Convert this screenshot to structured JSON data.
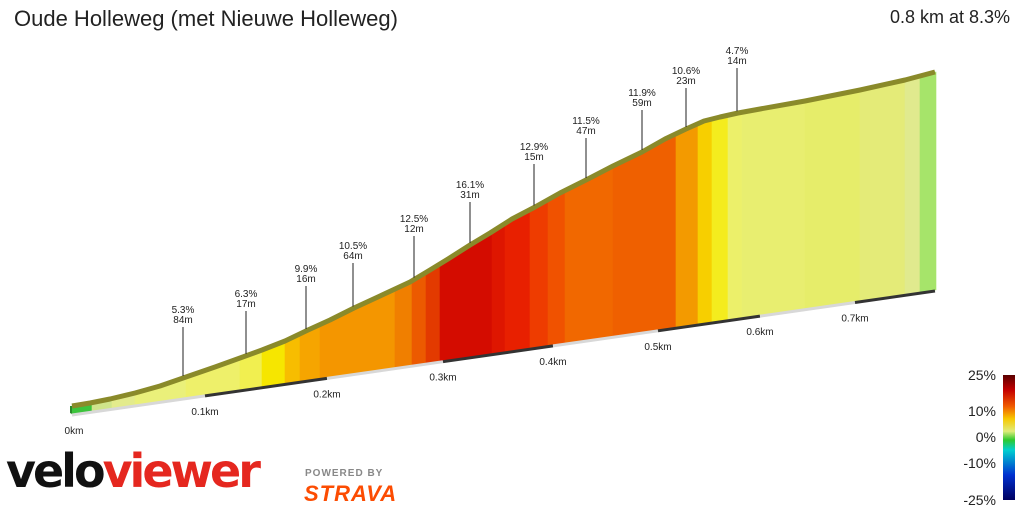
{
  "header": {
    "title": "Oude Holleweg (met Nieuwe Holleweg)",
    "stats": "0.8 km at 8.3%"
  },
  "chart_data": {
    "type": "area",
    "title": "Oude Holleweg (met Nieuwe Holleweg)",
    "x_unit": "km",
    "distance_ticks": [
      "0km",
      "0.1km",
      "0.2km",
      "0.3km",
      "0.4km",
      "0.5km",
      "0.6km",
      "0.7km"
    ],
    "segments": [
      {
        "gradient": "5.3%",
        "length": "84m"
      },
      {
        "gradient": "6.3%",
        "length": "17m"
      },
      {
        "gradient": "9.9%",
        "length": "16m"
      },
      {
        "gradient": "10.5%",
        "length": "64m"
      },
      {
        "gradient": "12.5%",
        "length": "12m"
      },
      {
        "gradient": "16.1%",
        "length": "31m"
      },
      {
        "gradient": "12.9%",
        "length": "15m"
      },
      {
        "gradient": "11.5%",
        "length": "47m"
      },
      {
        "gradient": "11.9%",
        "length": "59m"
      },
      {
        "gradient": "10.6%",
        "length": "23m"
      },
      {
        "gradient": "4.7%",
        "length": "14m"
      }
    ],
    "color_scale": {
      "labels": [
        "25%",
        "10%",
        "0%",
        "-10%",
        "-25%"
      ]
    }
  },
  "branding": {
    "logo_left": "velo",
    "logo_right": "viewer",
    "powered_by": "POWERED BY",
    "partner": "STRAVA"
  }
}
